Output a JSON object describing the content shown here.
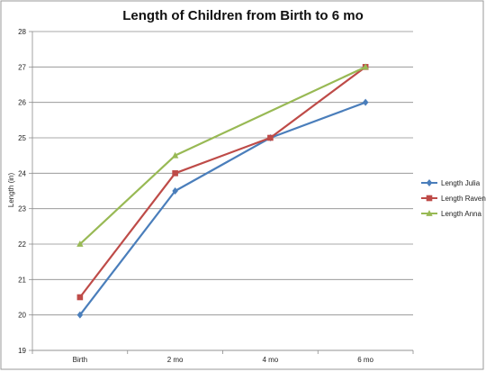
{
  "chart_data": {
    "type": "line",
    "title": "Length of Children from Birth to 6 mo",
    "xlabel": "",
    "ylabel": "Length  (in)",
    "categories": [
      "Birth",
      "2 mo",
      "4 mo",
      "6 mo"
    ],
    "ylim": [
      19,
      28
    ],
    "yticks": [
      19,
      20,
      21,
      22,
      23,
      24,
      25,
      26,
      27,
      28
    ],
    "grid": true,
    "legend_position": "right",
    "series": [
      {
        "name": "Length Julia",
        "values": [
          20,
          23.5,
          25,
          26
        ],
        "color": "#4a7ebb",
        "marker": "diamond"
      },
      {
        "name": "Length Raven",
        "values": [
          20.5,
          24,
          25,
          27
        ],
        "color": "#be4b48",
        "marker": "square"
      },
      {
        "name": "Length Anna",
        "values": [
          22,
          24.5,
          null,
          27
        ],
        "color": "#98b954",
        "marker": "triangle"
      }
    ]
  }
}
